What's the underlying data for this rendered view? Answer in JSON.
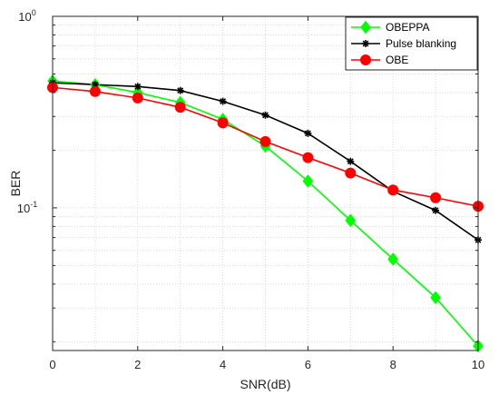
{
  "chart_data": {
    "type": "line",
    "title": "",
    "xlabel": "SNR(dB)",
    "ylabel": "BER",
    "xlim": [
      0,
      10
    ],
    "ylim": [
      0.018,
      1
    ],
    "yscale": "log",
    "grid": true,
    "legend_position": "top-right",
    "x_ticks": [
      0,
      2,
      4,
      6,
      8,
      10
    ],
    "y_ticks": [
      {
        "value": 1,
        "base": "10",
        "exp": "0"
      },
      {
        "value": 0.1,
        "base": "10",
        "exp": "-1"
      }
    ],
    "x": [
      0,
      1,
      2,
      3,
      4,
      5,
      6,
      7,
      8,
      9,
      10
    ],
    "series": [
      {
        "name": "OBEPPA",
        "color": "#00ff00",
        "marker": "diamond",
        "values": [
          0.46,
          0.44,
          0.4,
          0.355,
          0.29,
          0.21,
          0.138,
          0.086,
          0.054,
          0.034,
          0.019
        ]
      },
      {
        "name": "Pulse blanking",
        "color": "#000000",
        "marker": "asterisk",
        "values": [
          0.45,
          0.44,
          0.43,
          0.41,
          0.36,
          0.305,
          0.245,
          0.175,
          0.122,
          0.097,
          0.068
        ]
      },
      {
        "name": "OBE",
        "color": "#ff0000",
        "marker": "circle",
        "values": [
          0.425,
          0.405,
          0.375,
          0.335,
          0.278,
          0.222,
          0.183,
          0.152,
          0.124,
          0.113,
          0.102
        ]
      }
    ]
  }
}
